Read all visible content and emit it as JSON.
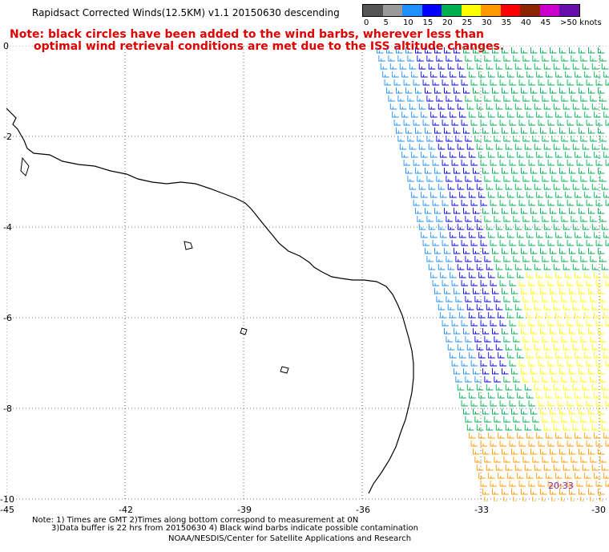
{
  "title": "Rapidsact Corrected Winds(12.5KM) v1.1 20150630 descending",
  "notes": {
    "line1": "Note: black circles have been added to the wind barbs, wherever less than",
    "line2": "optimal wind retrieval conditions are met due to the ISS altitude changes."
  },
  "color_scale": {
    "labels": [
      "0",
      "5",
      "10",
      "15",
      "20",
      "25",
      "30",
      "35",
      "40",
      "45",
      ">50 knots"
    ],
    "colors": [
      "#555555",
      "#9a9a9a",
      "#1e90ff",
      "#0000ff",
      "#00b050",
      "#ffff00",
      "#ff9900",
      "#ff0000",
      "#8b2500",
      "#cc00cc",
      "#6a0dad"
    ]
  },
  "map": {
    "lat_labels": [
      "0",
      "-2",
      "-4",
      "-6",
      "-8",
      "-10"
    ],
    "lon_labels": [
      "-45",
      "-42",
      "-39",
      "-36",
      "-33",
      "-30"
    ],
    "time_label": "20:33",
    "coast_color": "#000000",
    "grid": "dotted"
  },
  "footer": {
    "line1": "Note: 1) Times are GMT 2)Times along bottom correspond to measurement at 0N",
    "line2": "3)Data buffer is 22 hrs from 20150630 4) Black wind barbs indicate possible contamination",
    "line3": "NOAA/NESDIS/Center for Satellite Applications and Research"
  }
}
